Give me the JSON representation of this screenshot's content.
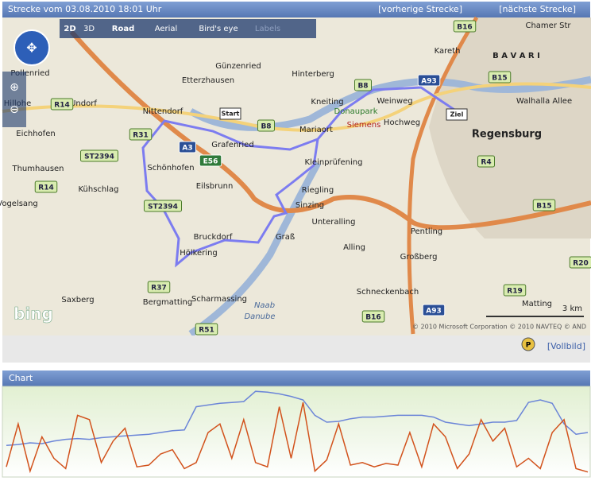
{
  "header": {
    "title": "Strecke vom 03.08.2010 18:01 Uhr",
    "prev": "[vorherige Strecke]",
    "next": "[nächste Strecke]"
  },
  "map": {
    "view_modes": [
      "2D",
      "3D",
      "Road",
      "Aerial",
      "Bird's eye",
      "Labels"
    ],
    "labels": [
      "Pollenried",
      "Günzenried",
      "Etterzhausen",
      "Hinterberg",
      "Kareth",
      "Chamer Str",
      "B A V A R I",
      "Undorf",
      "Hillohe",
      "Nittendorf",
      "Kneiting",
      "Weinweg",
      "Walhalla Allee",
      "Eichhofen",
      "Donaupark",
      "Siemens",
      "Hochweg",
      "Mariaort",
      "Regensburg",
      "Grafenried",
      "Thumhausen",
      "Schönhofen",
      "Kleinprüfening",
      "Eilsbrunn",
      "Riegling",
      "Kühschlag",
      "Vogelsang",
      "Sinzing",
      "Unteralling",
      "Bruckdorf",
      "Graß",
      "Pentling",
      "Alling",
      "Hölkering",
      "Großberg",
      "Schneckenbach",
      "Saxberg",
      "Bergmatting",
      "Scharmassing",
      "Matting",
      "Danube",
      "Naab",
      "Start",
      "Ziel"
    ],
    "road_signs": [
      "B16",
      "R14",
      "B8",
      "A93",
      "B15",
      "R31",
      "A3",
      "E56",
      "ST2394",
      "R4",
      "R37",
      "R51",
      "R19",
      "R20",
      "B8",
      "ST2394",
      "R14",
      "B15",
      "A93",
      "B16"
    ],
    "brand": "bing",
    "scale": "3 km",
    "copyright": "© 2010 Microsoft Corporation  © 2010 NAVTEQ  © AND"
  },
  "footer": {
    "icon": "P",
    "fullscreen": "[Vollbild]"
  },
  "chart_panel": {
    "title": "Chart"
  },
  "chart_data": {
    "type": "line",
    "ylim": [
      0,
      100
    ],
    "series": [
      {
        "color": "#6b85d8",
        "values": [
          35,
          36,
          38,
          37,
          40,
          42,
          43,
          42,
          44,
          45,
          46,
          47,
          48,
          50,
          52,
          53,
          80,
          82,
          84,
          85,
          86,
          98,
          97,
          95,
          92,
          88,
          70,
          62,
          63,
          66,
          68,
          68,
          69,
          70,
          70,
          70,
          68,
          62,
          60,
          58,
          60,
          62,
          62,
          64,
          85,
          88,
          84,
          60,
          48,
          50
        ]
      },
      {
        "color": "#d2521c",
        "values": [
          10,
          60,
          5,
          45,
          20,
          8,
          70,
          65,
          15,
          40,
          55,
          10,
          12,
          25,
          30,
          8,
          15,
          50,
          60,
          20,
          65,
          15,
          10,
          80,
          20,
          85,
          5,
          18,
          60,
          12,
          15,
          10,
          14,
          12,
          50,
          10,
          60,
          45,
          8,
          25,
          65,
          40,
          55,
          10,
          20,
          8,
          50,
          65,
          8,
          4
        ]
      }
    ]
  }
}
